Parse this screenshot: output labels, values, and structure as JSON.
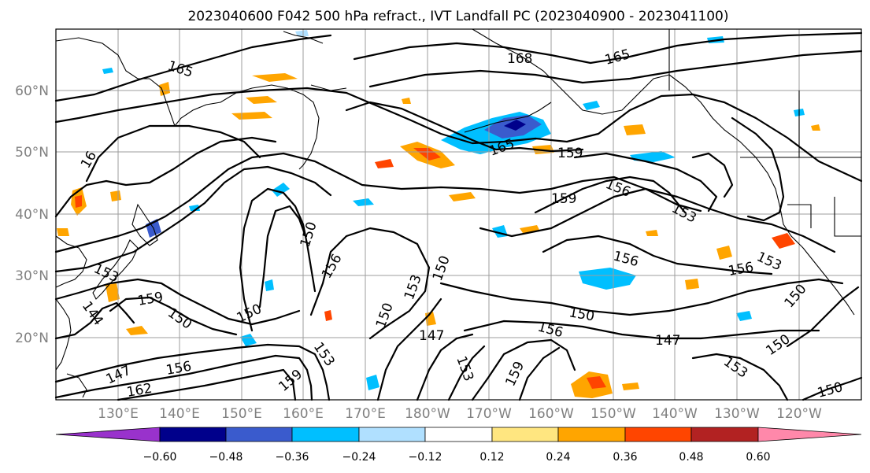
{
  "title": "2023040600 F042 500 hPa refract., IVT Landfall PC (2023040900 - 2023041100)",
  "lat_labels": [
    "60°N",
    "50°N",
    "40°N",
    "30°N",
    "20°N"
  ],
  "lon_labels": [
    "130°E",
    "140°E",
    "150°E",
    "160°E",
    "170°E",
    "180°W",
    "170°W",
    "160°W",
    "150°W",
    "140°W",
    "130°W",
    "120°W"
  ],
  "contour_labels": [
    "165",
    "168",
    "165",
    "16",
    "165",
    "159",
    "159",
    "156",
    "153",
    "150",
    "156",
    "153",
    "156",
    "156",
    "153",
    "159",
    "150",
    "150",
    "150",
    "153",
    "150",
    "150",
    "147",
    "156",
    "150",
    "147",
    "150",
    "153",
    "153",
    "159",
    "153",
    "159",
    "144",
    "147",
    "156",
    "162",
    "150"
  ],
  "colorbar": {
    "ticks": [
      "−0.60",
      "−0.48",
      "−0.36",
      "−0.24",
      "−0.12",
      "0.12",
      "0.24",
      "0.36",
      "0.48",
      "0.60"
    ],
    "colors": [
      "#9932cc",
      "#00008b",
      "#3a5bcd",
      "#00bfff",
      "#b0e0ff",
      "#ffffff",
      "#ffe680",
      "#ffa500",
      "#ff4500",
      "#b22222",
      "#ff88aa"
    ]
  }
}
